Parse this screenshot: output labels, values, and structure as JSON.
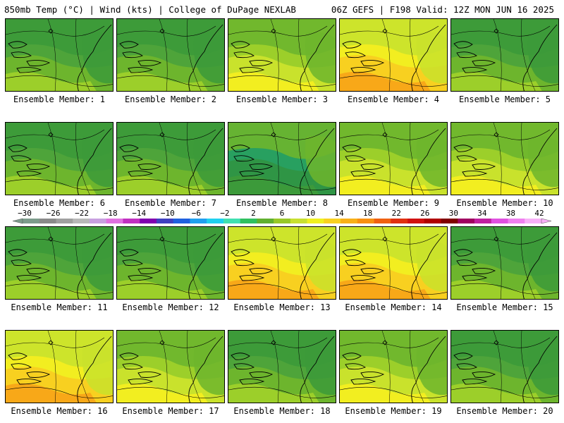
{
  "header": {
    "left": "850mb Temp (°C) | Wind (kts) | College of DuPage NEXLAB",
    "right": "06Z GEFS | F198 Valid: 12Z MON JUN 16 2025"
  },
  "colorbar": {
    "labels": [
      "−30",
      "−26",
      "−22",
      "−18",
      "−14",
      "−10",
      "−6",
      "−2",
      "2",
      "6",
      "10",
      "14",
      "18",
      "22",
      "26",
      "30",
      "34",
      "38",
      "42"
    ],
    "colors": [
      "#7d9c8c",
      "#8a8a8a",
      "#a0a0a0",
      "#b8b8b8",
      "#c8a0e0",
      "#e070e0",
      "#c030c0",
      "#8000b0",
      "#4040c0",
      "#2060e0",
      "#20a0f0",
      "#20d0f0",
      "#40e0b0",
      "#30c060",
      "#60b030",
      "#98c828",
      "#c8e030",
      "#f0f020",
      "#f8d020",
      "#f8b018",
      "#f89010",
      "#f06010",
      "#e03010",
      "#d01010",
      "#b00000",
      "#800000",
      "#a00060",
      "#c020a0",
      "#e050e0",
      "#f080f0",
      "#f8b0f8"
    ]
  },
  "members": [
    {
      "label": "Ensemble Member: 1",
      "style": "green"
    },
    {
      "label": "Ensemble Member: 2",
      "style": "green"
    },
    {
      "label": "Ensemble Member: 3",
      "style": "yellow"
    },
    {
      "label": "Ensemble Member: 4",
      "style": "orange"
    },
    {
      "label": "Ensemble Member: 5",
      "style": "green"
    },
    {
      "label": "Ensemble Member: 6",
      "style": "green"
    },
    {
      "label": "Ensemble Member: 7",
      "style": "green"
    },
    {
      "label": "Ensemble Member: 8",
      "style": "cool"
    },
    {
      "label": "Ensemble Member: 9",
      "style": "yellow"
    },
    {
      "label": "Ensemble Member: 10",
      "style": "yellow"
    },
    {
      "label": "Ensemble Member: 11",
      "style": "green"
    },
    {
      "label": "Ensemble Member: 12",
      "style": "green"
    },
    {
      "label": "Ensemble Member: 13",
      "style": "orange"
    },
    {
      "label": "Ensemble Member: 14",
      "style": "orange"
    },
    {
      "label": "Ensemble Member: 15",
      "style": "green"
    },
    {
      "label": "Ensemble Member: 16",
      "style": "orange"
    },
    {
      "label": "Ensemble Member: 17",
      "style": "yellow"
    },
    {
      "label": "Ensemble Member: 18",
      "style": "green"
    },
    {
      "label": "Ensemble Member: 19",
      "style": "yellow"
    },
    {
      "label": "Ensemble Member: 20",
      "style": "green"
    }
  ]
}
